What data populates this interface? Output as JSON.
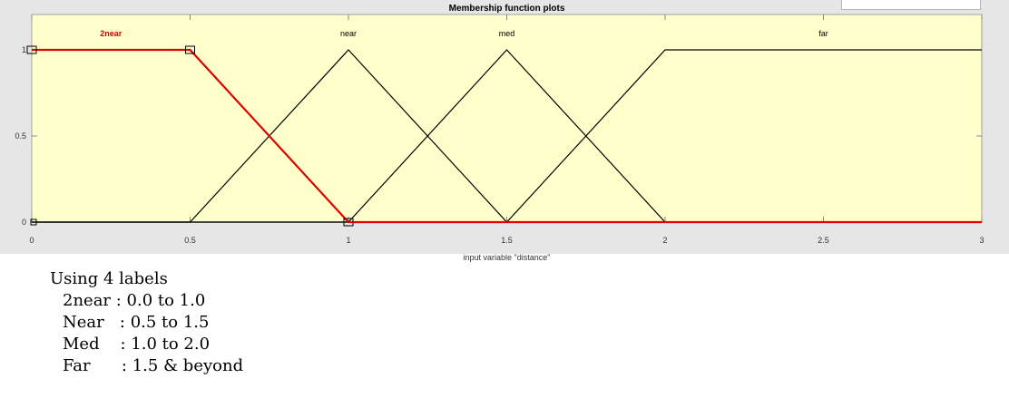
{
  "chart_data": {
    "type": "line",
    "title": "Membership function plots",
    "xlabel": "input variable \"distance\"",
    "ylabel": "",
    "xlim": [
      0,
      3
    ],
    "ylim": [
      0,
      1
    ],
    "x_ticks": [
      "0",
      "0.5",
      "1",
      "1.5",
      "2",
      "2.5",
      "3"
    ],
    "y_ticks": [
      "0",
      "0.5",
      "1"
    ],
    "grid": false,
    "plot_background": "#ffffcc",
    "series": [
      {
        "name": "2near",
        "x": [
          0,
          0.5,
          1,
          3
        ],
        "y": [
          1,
          1,
          0,
          0
        ],
        "color": "#e00000",
        "selected": true
      },
      {
        "name": "near",
        "x": [
          0,
          0.5,
          1,
          1.5,
          3
        ],
        "y": [
          0,
          0,
          1,
          0,
          0
        ],
        "color": "#000000"
      },
      {
        "name": "med",
        "x": [
          0,
          1,
          1.5,
          2,
          3
        ],
        "y": [
          0,
          0,
          1,
          0,
          0
        ],
        "color": "#000000"
      },
      {
        "name": "far",
        "x": [
          0,
          1.5,
          2,
          3
        ],
        "y": [
          0,
          0,
          1,
          1
        ],
        "color": "#000000"
      }
    ],
    "label_positions_x": [
      0.25,
      1,
      1.5,
      2.5
    ]
  },
  "notes": {
    "heading": "Using 4 labels",
    "lines": [
      "2near : 0.0 to 1.0",
      "Near   : 0.5 to 1.5",
      "Med    : 1.0 to 2.0",
      "Far      : 1.5 & beyond"
    ]
  },
  "colors": {
    "figure_background": "#e6e6e6",
    "selected_series": "#e00000"
  }
}
